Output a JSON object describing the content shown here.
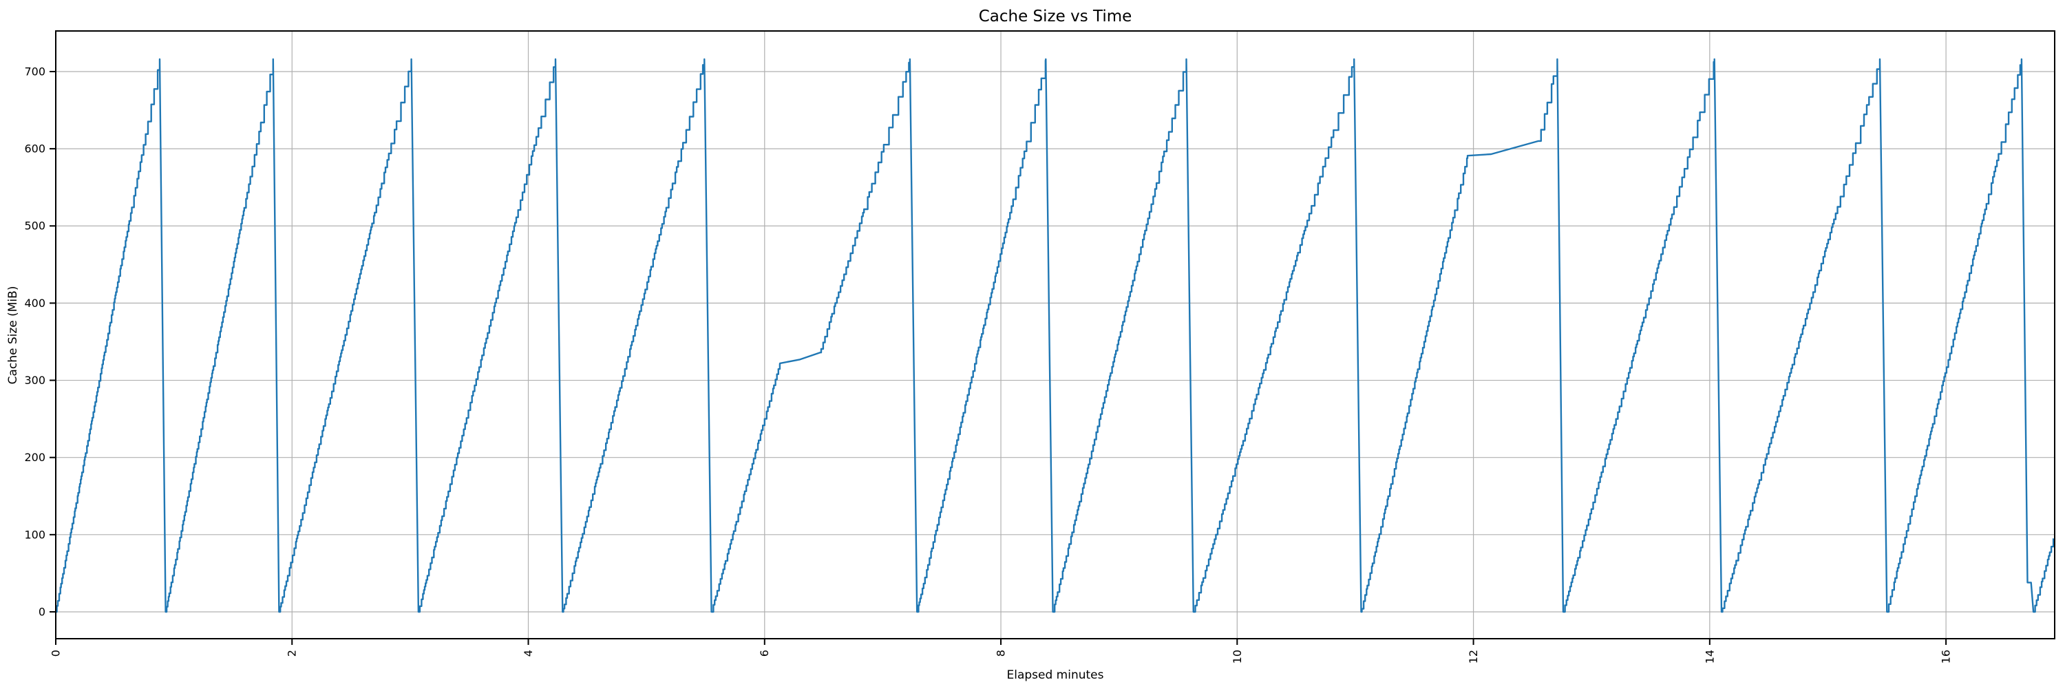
{
  "chart_data": {
    "type": "line",
    "title": "Cache Size vs Time",
    "xlabel": "Elapsed minutes",
    "ylabel": "Cache Size (MiB)",
    "xlim": [
      0,
      16.92
    ],
    "ylim": [
      -34.8,
      752.6
    ],
    "xticks": [
      0,
      2,
      4,
      6,
      8,
      10,
      12,
      14,
      16
    ],
    "yticks": [
      0,
      100,
      200,
      300,
      400,
      500,
      600,
      700
    ],
    "grid": true,
    "legend": "none",
    "line_color": "#1f77b4",
    "grid_color": "#b0b0b0",
    "spine_color": "#000000",
    "background_color": "#ffffff",
    "peak_value_mib": 716,
    "min_value_mib": 0,
    "peaks_minutes": [
      0.88,
      1.84,
      3.01,
      4.23,
      5.49,
      7.23,
      8.38,
      9.57,
      10.99,
      12.71,
      14.04,
      15.44,
      16.64
    ],
    "plateaus": [
      {
        "start_min": 6.13,
        "end_min": 6.47,
        "level_mib_start": 322,
        "level_mib_end": 336
      },
      {
        "start_min": 11.95,
        "end_min": 12.55,
        "level_mib_start": 591,
        "level_mib_end": 610
      }
    ],
    "series": [
      {
        "name": "cache-size",
        "style": "staircase-sawtooth",
        "envelope": [
          [
            0.0,
            0
          ],
          [
            0.88,
            716
          ],
          [
            0.93,
            0
          ],
          [
            1.84,
            716
          ],
          [
            1.89,
            0
          ],
          [
            3.01,
            716
          ],
          [
            3.07,
            0
          ],
          [
            4.23,
            716
          ],
          [
            4.29,
            0
          ],
          [
            5.49,
            716
          ],
          [
            5.55,
            0
          ],
          [
            6.13,
            322
          ],
          [
            6.3,
            327
          ],
          [
            6.47,
            336
          ],
          [
            7.23,
            716
          ],
          [
            7.29,
            0
          ],
          [
            8.38,
            716
          ],
          [
            8.44,
            0
          ],
          [
            9.57,
            716
          ],
          [
            9.63,
            0
          ],
          [
            10.99,
            716
          ],
          [
            11.05,
            0
          ],
          [
            11.95,
            591
          ],
          [
            12.15,
            593
          ],
          [
            12.55,
            610
          ],
          [
            12.71,
            716
          ],
          [
            12.76,
            0
          ],
          [
            14.04,
            716
          ],
          [
            14.1,
            0
          ],
          [
            15.44,
            716
          ],
          [
            15.5,
            0
          ],
          [
            16.64,
            716
          ],
          [
            16.69,
            38
          ],
          [
            16.72,
            38
          ],
          [
            16.74,
            0
          ],
          [
            16.91,
            95
          ]
        ]
      }
    ]
  }
}
